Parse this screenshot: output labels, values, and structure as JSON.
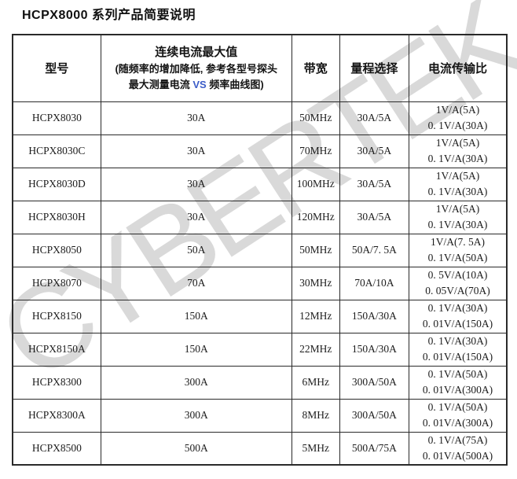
{
  "title": "HCPX8000 系列产品简要说明",
  "watermark": "CYBERTEK",
  "colors": {
    "vs_accent": "#3b5cc8",
    "watermark_gray": "#d9d9d9",
    "border": "#2a2a2a"
  },
  "table": {
    "headers": {
      "model": "型号",
      "max_current_line1": "连续电流最大值",
      "max_current_line2": "(随频率的增加降低, 参考各型号探头",
      "max_current_line3_pre": "最大测量电流 ",
      "max_current_line3_vs": "VS",
      "max_current_line3_post": " 频率曲线图)",
      "bandwidth": "带宽",
      "range": "量程选择",
      "ratio": "电流传输比"
    },
    "rows": [
      {
        "model": "HCPX8030",
        "max_current": "30A",
        "bandwidth": "50MHz",
        "range": "30A/5A",
        "ratio1": "1V/A(5A)",
        "ratio2": "0. 1V/A(30A)"
      },
      {
        "model": "HCPX8030C",
        "max_current": "30A",
        "bandwidth": "70MHz",
        "range": "30A/5A",
        "ratio1": "1V/A(5A)",
        "ratio2": "0. 1V/A(30A)"
      },
      {
        "model": "HCPX8030D",
        "max_current": "30A",
        "bandwidth": "100MHz",
        "range": "30A/5A",
        "ratio1": "1V/A(5A)",
        "ratio2": "0. 1V/A(30A)"
      },
      {
        "model": "HCPX8030H",
        "max_current": "30A",
        "bandwidth": "120MHz",
        "range": "30A/5A",
        "ratio1": "1V/A(5A)",
        "ratio2": "0. 1V/A(30A)"
      },
      {
        "model": "HCPX8050",
        "max_current": "50A",
        "bandwidth": "50MHz",
        "range": "50A/7. 5A",
        "ratio1": "1V/A(7. 5A)",
        "ratio2": "0. 1V/A(50A)"
      },
      {
        "model": "HCPX8070",
        "max_current": "70A",
        "bandwidth": "30MHz",
        "range": "70A/10A",
        "ratio1": "0. 5V/A(10A)",
        "ratio2": "0. 05V/A(70A)"
      },
      {
        "model": "HCPX8150",
        "max_current": "150A",
        "bandwidth": "12MHz",
        "range": "150A/30A",
        "ratio1": "0. 1V/A(30A)",
        "ratio2": "0. 01V/A(150A)"
      },
      {
        "model": "HCPX8150A",
        "max_current": "150A",
        "bandwidth": "22MHz",
        "range": "150A/30A",
        "ratio1": "0. 1V/A(30A)",
        "ratio2": "0. 01V/A(150A)"
      },
      {
        "model": "HCPX8300",
        "max_current": "300A",
        "bandwidth": "6MHz",
        "range": "300A/50A",
        "ratio1": "0. 1V/A(50A)",
        "ratio2": "0. 01V/A(300A)"
      },
      {
        "model": "HCPX8300A",
        "max_current": "300A",
        "bandwidth": "8MHz",
        "range": "300A/50A",
        "ratio1": "0. 1V/A(50A)",
        "ratio2": "0. 01V/A(300A)"
      },
      {
        "model": "HCPX8500",
        "max_current": "500A",
        "bandwidth": "5MHz",
        "range": "500A/75A",
        "ratio1": "0. 1V/A(75A)",
        "ratio2": "0. 01V/A(500A)"
      }
    ]
  }
}
